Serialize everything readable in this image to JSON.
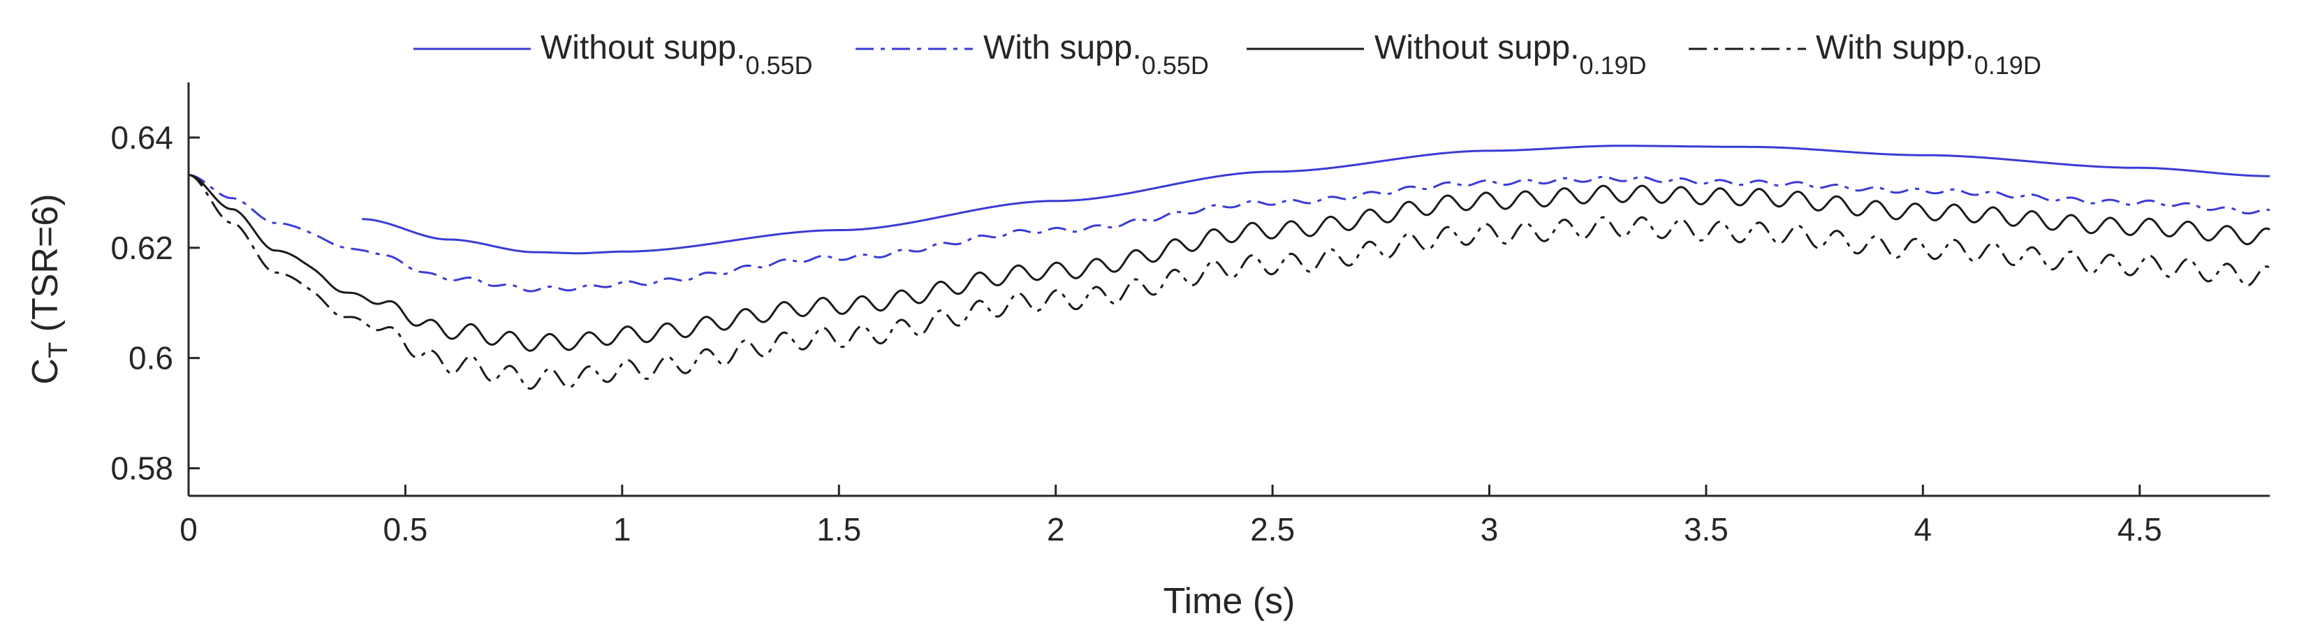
{
  "chart_data": {
    "type": "line",
    "title": "",
    "xlabel": "Time (s)",
    "ylabel_main": "C",
    "ylabel_sub": "T",
    "ylabel_rest": " (TSR=6)",
    "xlim": [
      0,
      4.8
    ],
    "ylim": [
      0.575,
      0.65
    ],
    "xticks": [
      0,
      0.5,
      1,
      1.5,
      2,
      2.5,
      3,
      3.5,
      4,
      4.5
    ],
    "xtick_labels": [
      "0",
      "0.5",
      "1",
      "1.5",
      "2",
      "2.5",
      "3",
      "3.5",
      "4",
      "4.5"
    ],
    "yticks": [
      0.58,
      0.6,
      0.62,
      0.64
    ],
    "ytick_labels": [
      "0.58",
      "0.6",
      "0.62",
      "0.64"
    ],
    "grid": false,
    "legend_position": "top",
    "series": [
      {
        "name": "Without supp.",
        "subscript": "0.55D",
        "color": "#3a3ad6",
        "style": "solid",
        "oscillation": {
          "amplitude": 0,
          "period": 0.09
        },
        "points": [
          [
            0.4,
            0.6252
          ],
          [
            0.6,
            0.6215
          ],
          [
            0.8,
            0.6192
          ],
          [
            0.9,
            0.619
          ],
          [
            1.0,
            0.6193
          ],
          [
            1.5,
            0.6232
          ],
          [
            2.0,
            0.6285
          ],
          [
            2.5,
            0.6338
          ],
          [
            3.0,
            0.6376
          ],
          [
            3.3,
            0.6385
          ],
          [
            3.6,
            0.6383
          ],
          [
            4.0,
            0.6368
          ],
          [
            4.5,
            0.6345
          ],
          [
            4.8,
            0.633
          ]
        ]
      },
      {
        "name": "With supp.",
        "subscript": "0.55D",
        "color": "#3a3ad6",
        "style": "dashdot",
        "oscillation": {
          "amplitude": 0.0004,
          "period": 0.09
        },
        "points": [
          [
            0.0,
            0.6332
          ],
          [
            0.1,
            0.629
          ],
          [
            0.2,
            0.6245
          ],
          [
            0.4,
            0.6195
          ],
          [
            0.6,
            0.6145
          ],
          [
            0.8,
            0.6125
          ],
          [
            0.9,
            0.6127
          ],
          [
            1.0,
            0.6135
          ],
          [
            1.5,
            0.6182
          ],
          [
            2.0,
            0.6232
          ],
          [
            2.5,
            0.6282
          ],
          [
            3.0,
            0.6318
          ],
          [
            3.3,
            0.6325
          ],
          [
            3.6,
            0.6318
          ],
          [
            4.0,
            0.6303
          ],
          [
            4.5,
            0.6282
          ],
          [
            4.8,
            0.6265
          ]
        ]
      },
      {
        "name": "Without supp.",
        "subscript": "0.19D",
        "color": "#1a1a1a",
        "style": "solid",
        "oscillation": {
          "amplitude": 0.0015,
          "period": 0.09
        },
        "points": [
          [
            0.0,
            0.6332
          ],
          [
            0.1,
            0.627
          ],
          [
            0.2,
            0.6195
          ],
          [
            0.4,
            0.611
          ],
          [
            0.6,
            0.605
          ],
          [
            0.8,
            0.6028
          ],
          [
            0.9,
            0.603
          ],
          [
            1.0,
            0.6042
          ],
          [
            1.5,
            0.6095
          ],
          [
            2.0,
            0.6158
          ],
          [
            2.5,
            0.6232
          ],
          [
            3.0,
            0.6285
          ],
          [
            3.3,
            0.6298
          ],
          [
            3.6,
            0.6292
          ],
          [
            4.0,
            0.6265
          ],
          [
            4.5,
            0.6238
          ],
          [
            4.8,
            0.622
          ]
        ]
      },
      {
        "name": "With supp.",
        "subscript": "0.19D",
        "color": "#1a1a1a",
        "style": "dashdot",
        "oscillation": {
          "amplitude": 0.0018,
          "period": 0.09
        },
        "points": [
          [
            0.0,
            0.6332
          ],
          [
            0.1,
            0.6245
          ],
          [
            0.2,
            0.6155
          ],
          [
            0.4,
            0.6065
          ],
          [
            0.6,
            0.599
          ],
          [
            0.8,
            0.5962
          ],
          [
            0.9,
            0.5965
          ],
          [
            1.0,
            0.5978
          ],
          [
            1.5,
            0.6038
          ],
          [
            2.0,
            0.6105
          ],
          [
            2.5,
            0.617
          ],
          [
            3.0,
            0.6225
          ],
          [
            3.3,
            0.6238
          ],
          [
            3.6,
            0.6228
          ],
          [
            4.0,
            0.6198
          ],
          [
            4.5,
            0.6168
          ],
          [
            4.8,
            0.6148
          ]
        ]
      }
    ]
  }
}
